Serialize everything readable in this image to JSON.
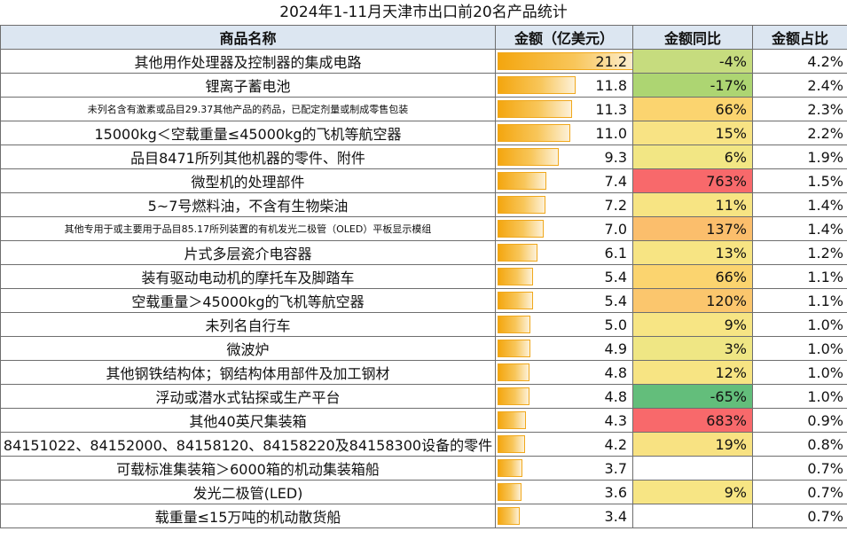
{
  "chart_data": {
    "type": "table",
    "title": "2024年1-11月天津市出口前20名产品统计",
    "columns": [
      "商品名称",
      "金额（亿美元）",
      "金额同比",
      "金额占比"
    ],
    "bar_max": 21.2,
    "rows": [
      {
        "name": "其他用作处理器及控制器的集成电路",
        "amount": 21.2,
        "amount_label": "21.2",
        "yoy": "-4%",
        "yoy_color": "#c6dc7e",
        "share": "4.2%",
        "small": false
      },
      {
        "name": "锂离子蓄电池",
        "amount": 11.8,
        "amount_label": "11.8",
        "yoy": "-17%",
        "yoy_color": "#add572",
        "share": "2.4%",
        "small": false
      },
      {
        "name": "未列名含有激素或品目29.37其他产品的药品，已配定剂量或制成零售包装",
        "amount": 11.3,
        "amount_label": "11.3",
        "yoy": "66%",
        "yoy_color": "#fbd46f",
        "share": "2.3%",
        "small": true
      },
      {
        "name": "15000kg＜空载重量≤45000kg的飞机等航空器",
        "amount": 11.0,
        "amount_label": "11.0",
        "yoy": "15%",
        "yoy_color": "#f8e384",
        "share": "2.2%",
        "small": false
      },
      {
        "name": "品目8471所列其他机器的零件、附件",
        "amount": 9.3,
        "amount_label": "9.3",
        "yoy": "6%",
        "yoy_color": "#f2e684",
        "share": "1.9%",
        "small": false
      },
      {
        "name": "微型机的处理部件",
        "amount": 7.4,
        "amount_label": "7.4",
        "yoy": "763%",
        "yoy_color": "#f8696b",
        "share": "1.5%",
        "small": false
      },
      {
        "name": "5~7号燃料油，不含有生物柴油",
        "amount": 7.2,
        "amount_label": "7.2",
        "yoy": "11%",
        "yoy_color": "#f7e483",
        "share": "1.4%",
        "small": false
      },
      {
        "name": "其他专用于或主要用于品目85.17所列装置的有机发光二极管（OLED）平板显示模组",
        "amount": 7.0,
        "amount_label": "7.0",
        "yoy": "137%",
        "yoy_color": "#fbbe6c",
        "share": "1.4%",
        "small": true
      },
      {
        "name": "片式多层瓷介电容器",
        "amount": 6.1,
        "amount_label": "6.1",
        "yoy": "13%",
        "yoy_color": "#f7e483",
        "share": "1.2%",
        "small": false
      },
      {
        "name": "装有驱动电动机的摩托车及脚踏车",
        "amount": 5.4,
        "amount_label": "5.4",
        "yoy": "66%",
        "yoy_color": "#fbd46f",
        "share": "1.1%",
        "small": false
      },
      {
        "name": "空载重量＞45000kg的飞机等航空器",
        "amount": 5.4,
        "amount_label": "5.4",
        "yoy": "120%",
        "yoy_color": "#fbc66d",
        "share": "1.1%",
        "small": false
      },
      {
        "name": "未列名自行车",
        "amount": 5.0,
        "amount_label": "5.0",
        "yoy": "9%",
        "yoy_color": "#f7e584",
        "share": "1.0%",
        "small": false
      },
      {
        "name": "微波炉",
        "amount": 4.9,
        "amount_label": "4.9",
        "yoy": "3%",
        "yoy_color": "#efe684",
        "share": "1.0%",
        "small": false
      },
      {
        "name": "其他钢铁结构体；钢结构体用部件及加工钢材",
        "amount": 4.8,
        "amount_label": "4.8",
        "yoy": "12%",
        "yoy_color": "#f7e483",
        "share": "1.0%",
        "small": false
      },
      {
        "name": "浮动或潜水式钻探或生产平台",
        "amount": 4.8,
        "amount_label": "4.8",
        "yoy": "-65%",
        "yoy_color": "#63be7b",
        "share": "1.0%",
        "small": false
      },
      {
        "name": "其他40英尺集装箱",
        "amount": 4.3,
        "amount_label": "4.3",
        "yoy": "683%",
        "yoy_color": "#f8696b",
        "share": "0.9%",
        "small": false
      },
      {
        "name": "84151022、84152000、84158120、84158220及84158300设备的零件",
        "amount": 4.2,
        "amount_label": "4.2",
        "yoy": "19%",
        "yoy_color": "#f8e282",
        "share": "0.8%",
        "small": false
      },
      {
        "name": "可载标准集装箱＞6000箱的机动集装箱船",
        "amount": 3.7,
        "amount_label": "3.7",
        "yoy": "",
        "yoy_color": "#ffffff",
        "share": "0.7%",
        "small": false
      },
      {
        "name": "发光二极管(LED)",
        "amount": 3.6,
        "amount_label": "3.6",
        "yoy": "9%",
        "yoy_color": "#f7e584",
        "share": "0.7%",
        "small": false
      },
      {
        "name": "载重量≤15万吨的机动散货船",
        "amount": 3.4,
        "amount_label": "3.4",
        "yoy": "",
        "yoy_color": "#ffffff",
        "share": "0.7%",
        "small": false
      }
    ]
  }
}
